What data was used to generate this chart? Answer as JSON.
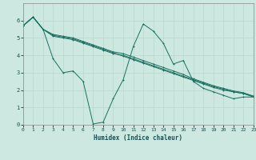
{
  "xlabel": "Humidex (Indice chaleur)",
  "xlim": [
    0,
    23
  ],
  "ylim": [
    0,
    7
  ],
  "xticks": [
    0,
    1,
    2,
    3,
    4,
    5,
    6,
    7,
    8,
    9,
    10,
    11,
    12,
    13,
    14,
    15,
    16,
    17,
    18,
    19,
    20,
    21,
    22,
    23
  ],
  "yticks": [
    0,
    1,
    2,
    3,
    4,
    5,
    6
  ],
  "bg_color": "#cce8e0",
  "grid_color": "#b8d8d0",
  "line_color": "#1a7060",
  "line1_x": [
    0,
    1,
    2,
    3,
    4,
    5,
    6,
    7,
    8,
    9,
    10,
    11,
    12,
    13,
    14,
    15,
    16,
    17,
    18,
    19,
    20,
    21,
    22,
    23
  ],
  "line1_y": [
    5.7,
    6.2,
    5.5,
    3.8,
    3.0,
    3.1,
    2.5,
    0.05,
    0.15,
    1.5,
    2.6,
    4.5,
    5.8,
    5.4,
    4.7,
    3.5,
    3.7,
    2.5,
    2.1,
    1.9,
    1.7,
    1.5,
    1.6,
    1.6
  ],
  "line2_x": [
    0,
    1,
    2,
    3,
    4,
    5,
    6,
    7,
    8,
    9,
    10,
    11,
    12,
    13,
    14,
    15,
    16,
    17,
    18,
    19,
    20,
    21,
    22,
    23
  ],
  "line2_y": [
    5.7,
    6.2,
    5.5,
    5.1,
    5.0,
    4.9,
    4.7,
    4.5,
    4.3,
    4.1,
    4.0,
    3.8,
    3.6,
    3.4,
    3.2,
    3.0,
    2.8,
    2.6,
    2.4,
    2.2,
    2.05,
    1.9,
    1.8,
    1.65
  ],
  "line3_x": [
    0,
    1,
    2,
    3,
    4,
    5,
    6,
    7,
    8,
    9,
    10,
    11,
    12,
    13,
    14,
    15,
    16,
    17,
    18,
    19,
    20,
    21,
    22,
    23
  ],
  "line3_y": [
    5.7,
    6.2,
    5.5,
    5.2,
    5.1,
    5.0,
    4.8,
    4.6,
    4.4,
    4.2,
    4.1,
    3.9,
    3.7,
    3.5,
    3.3,
    3.1,
    2.9,
    2.65,
    2.45,
    2.25,
    2.1,
    1.95,
    1.85,
    1.65
  ],
  "line4_x": [
    0,
    1,
    2,
    3,
    4,
    5,
    6,
    7,
    8,
    9,
    10,
    11,
    12,
    13,
    14,
    15,
    16,
    17,
    18,
    19,
    20,
    21,
    22,
    23
  ],
  "line4_y": [
    5.7,
    6.2,
    5.5,
    5.15,
    5.05,
    4.95,
    4.75,
    4.55,
    4.35,
    4.15,
    3.95,
    3.75,
    3.55,
    3.35,
    3.15,
    2.95,
    2.75,
    2.55,
    2.35,
    2.15,
    2.0,
    1.9,
    1.8,
    1.6
  ]
}
